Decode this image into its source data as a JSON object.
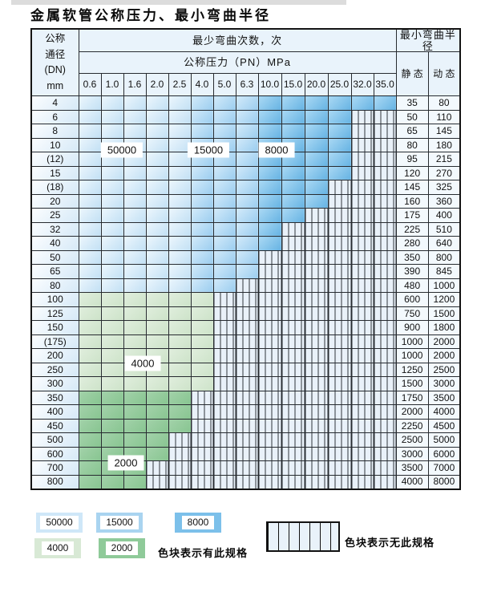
{
  "title": "金属软管公称压力、最小弯曲半径",
  "header": {
    "dn_lines": [
      "公称",
      "通径",
      "(DN)",
      "mm"
    ],
    "cycles_label": "最少弯曲次数，次",
    "pressure_label": "公称压力（PN）MPa",
    "pressure_columns": [
      "0.6",
      "1.0",
      "1.6",
      "2.0",
      "2.5",
      "4.0",
      "5.0",
      "6.3",
      "10.0",
      "15.0",
      "20.0",
      "25.0",
      "32.0",
      "35.0"
    ],
    "radius_label": "最小弯曲半径",
    "static_label": "静 态",
    "dynamic_label": "动 态"
  },
  "rows": [
    {
      "dn": "4",
      "zone": "blue",
      "last": 13,
      "static": "35",
      "dynamic": "80"
    },
    {
      "dn": "6",
      "zone": "blue",
      "last": 11,
      "static": "50",
      "dynamic": "110"
    },
    {
      "dn": "8",
      "zone": "blue",
      "last": 11,
      "static": "65",
      "dynamic": "145"
    },
    {
      "dn": "10",
      "zone": "blue",
      "last": 11,
      "static": "80",
      "dynamic": "180"
    },
    {
      "dn": "(12)",
      "zone": "blue",
      "last": 11,
      "static": "95",
      "dynamic": "215"
    },
    {
      "dn": "15",
      "zone": "blue",
      "last": 11,
      "static": "120",
      "dynamic": "270"
    },
    {
      "dn": "(18)",
      "zone": "blue",
      "last": 10,
      "static": "145",
      "dynamic": "325"
    },
    {
      "dn": "20",
      "zone": "blue",
      "last": 10,
      "static": "160",
      "dynamic": "360"
    },
    {
      "dn": "25",
      "zone": "blue",
      "last": 9,
      "static": "175",
      "dynamic": "400"
    },
    {
      "dn": "32",
      "zone": "blue",
      "last": 8,
      "static": "225",
      "dynamic": "510"
    },
    {
      "dn": "40",
      "zone": "blue",
      "last": 8,
      "static": "280",
      "dynamic": "640"
    },
    {
      "dn": "50",
      "zone": "blue",
      "last": 7,
      "static": "350",
      "dynamic": "800"
    },
    {
      "dn": "65",
      "zone": "blue",
      "last": 7,
      "static": "390",
      "dynamic": "845"
    },
    {
      "dn": "80",
      "zone": "blue",
      "last": 6,
      "static": "480",
      "dynamic": "1000"
    },
    {
      "dn": "100",
      "zone": "g4000",
      "last": 5,
      "static": "600",
      "dynamic": "1200"
    },
    {
      "dn": "125",
      "zone": "g4000",
      "last": 5,
      "static": "750",
      "dynamic": "1500"
    },
    {
      "dn": "150",
      "zone": "g4000",
      "last": 5,
      "static": "900",
      "dynamic": "1800"
    },
    {
      "dn": "(175)",
      "zone": "g4000",
      "last": 5,
      "static": "1000",
      "dynamic": "2000"
    },
    {
      "dn": "200",
      "zone": "g4000",
      "last": 5,
      "static": "1000",
      "dynamic": "2000"
    },
    {
      "dn": "250",
      "zone": "g4000",
      "last": 5,
      "static": "1250",
      "dynamic": "2500"
    },
    {
      "dn": "300",
      "zone": "g4000",
      "last": 5,
      "static": "1500",
      "dynamic": "3000"
    },
    {
      "dn": "350",
      "zone": "g2000",
      "last": 4,
      "static": "1750",
      "dynamic": "3500"
    },
    {
      "dn": "400",
      "zone": "g2000",
      "last": 4,
      "static": "2000",
      "dynamic": "4000"
    },
    {
      "dn": "450",
      "zone": "g2000",
      "last": 4,
      "static": "2250",
      "dynamic": "4500"
    },
    {
      "dn": "500",
      "zone": "g2000",
      "last": 3,
      "static": "2500",
      "dynamic": "5000"
    },
    {
      "dn": "600",
      "zone": "g2000",
      "last": 3,
      "static": "3000",
      "dynamic": "6000"
    },
    {
      "dn": "700",
      "zone": "g2000",
      "last": 2,
      "static": "3500",
      "dynamic": "7000"
    },
    {
      "dn": "800",
      "zone": "g2000",
      "last": 2,
      "static": "4000",
      "dynamic": "8000"
    }
  ],
  "region_labels": [
    "50000",
    "15000",
    "8000",
    "4000",
    "2000"
  ],
  "legend": {
    "swatches": [
      {
        "label": "50000",
        "color": "#cfe7f8"
      },
      {
        "label": "15000",
        "color": "#a9d4f0"
      },
      {
        "label": "8000",
        "color": "#7cc0ea"
      },
      {
        "label": "4000",
        "color": "#d8e9d5"
      },
      {
        "label": "2000",
        "color": "#8fca99"
      }
    ],
    "has_spec_text": "色块表示有此规格",
    "no_spec_text": "色块表示无此规格"
  },
  "colors": {
    "blue_50000": "#cfe7f8",
    "blue_15000": "#a9d4f0",
    "blue_8000": "#7cc0ea",
    "green_4000": "#d8e9d5",
    "green_2000": "#8fca99",
    "no_spec_fill": "#e9f1f9"
  }
}
